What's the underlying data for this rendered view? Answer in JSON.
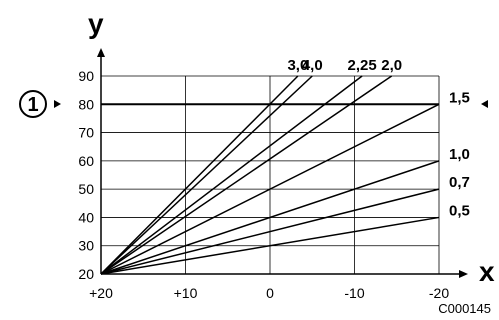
{
  "chart_data": {
    "type": "line",
    "xlabel": "x",
    "ylabel": "y",
    "x_ticks": [
      "+20",
      "+10",
      "0",
      "-10",
      "-20"
    ],
    "x_tick_values": [
      20,
      10,
      0,
      -10,
      -20
    ],
    "y_ticks": [
      "20",
      "30",
      "40",
      "50",
      "60",
      "70",
      "80",
      "90"
    ],
    "y_tick_values": [
      20,
      30,
      40,
      50,
      60,
      70,
      80,
      90
    ],
    "xlim": [
      20,
      -20
    ],
    "ylim": [
      20,
      90
    ],
    "grid": true,
    "series": [
      {
        "name": "4,0",
        "x": [
          20,
          -5
        ],
        "y": [
          20,
          90
        ]
      },
      {
        "name": "3,0",
        "x": [
          20,
          -3.3
        ],
        "y": [
          20,
          90
        ]
      },
      {
        "name": "2,25",
        "x": [
          20,
          -10.9
        ],
        "y": [
          20,
          90
        ]
      },
      {
        "name": "2,0",
        "x": [
          20,
          -14.4
        ],
        "y": [
          20,
          90
        ]
      },
      {
        "name": "1,5",
        "x": [
          20,
          -20
        ],
        "y": [
          20,
          80
        ]
      },
      {
        "name": "1,0",
        "x": [
          20,
          -20
        ],
        "y": [
          20,
          60
        ]
      },
      {
        "name": "0,7",
        "x": [
          20,
          -20
        ],
        "y": [
          20,
          50
        ]
      },
      {
        "name": "0,5",
        "x": [
          20,
          -20
        ],
        "y": [
          20,
          40
        ]
      }
    ],
    "reference_line": {
      "y": 80,
      "callout": "1"
    },
    "code": "C000145"
  }
}
